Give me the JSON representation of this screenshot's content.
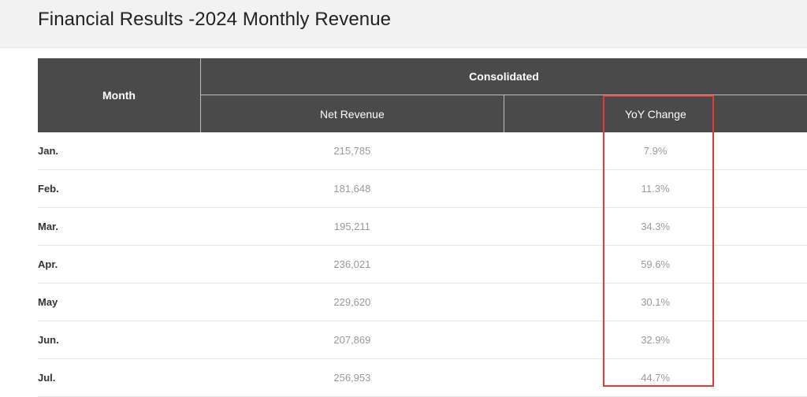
{
  "page": {
    "title": "Financial Results -2024 Monthly Revenue"
  },
  "table": {
    "headers": {
      "month": "Month",
      "consolidated": "Consolidated",
      "net_revenue": "Net Revenue",
      "yoy_change": "YoY Change"
    },
    "rows": [
      {
        "month": "Jan.",
        "net_revenue": "215,785",
        "yoy_change": "7.9%"
      },
      {
        "month": "Feb.",
        "net_revenue": "181,648",
        "yoy_change": "11.3%"
      },
      {
        "month": "Mar.",
        "net_revenue": "195,211",
        "yoy_change": "34.3%"
      },
      {
        "month": "Apr.",
        "net_revenue": "236,021",
        "yoy_change": "59.6%"
      },
      {
        "month": "May",
        "net_revenue": "229,620",
        "yoy_change": "30.1%"
      },
      {
        "month": "Jun.",
        "net_revenue": "207,869",
        "yoy_change": "32.9%"
      },
      {
        "month": "Jul.",
        "net_revenue": "256,953",
        "yoy_change": "44.7%"
      }
    ]
  },
  "colors": {
    "header_bg": "#4a4a4a",
    "highlight": "#e53935"
  }
}
